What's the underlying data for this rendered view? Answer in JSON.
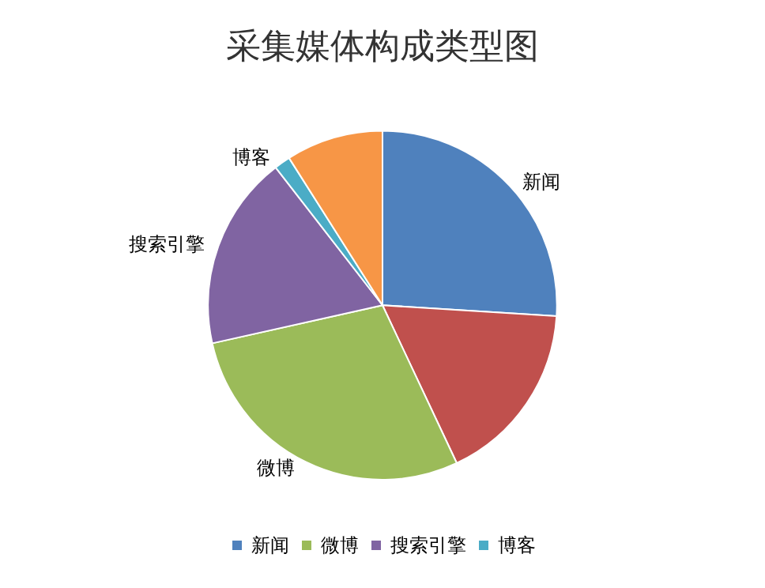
{
  "chart_data": {
    "type": "pie",
    "title": "采集媒体构成类型图",
    "categories": [
      "新闻",
      null,
      "微博",
      "搜索引擎",
      "博客",
      null
    ],
    "values": [
      26,
      17,
      28.5,
      18,
      1.5,
      9
    ],
    "colors": [
      "#4f81bd",
      "#c0504d",
      "#9bbb59",
      "#8064a2",
      "#4bacc6",
      "#f79646"
    ],
    "legend": "bottom"
  }
}
